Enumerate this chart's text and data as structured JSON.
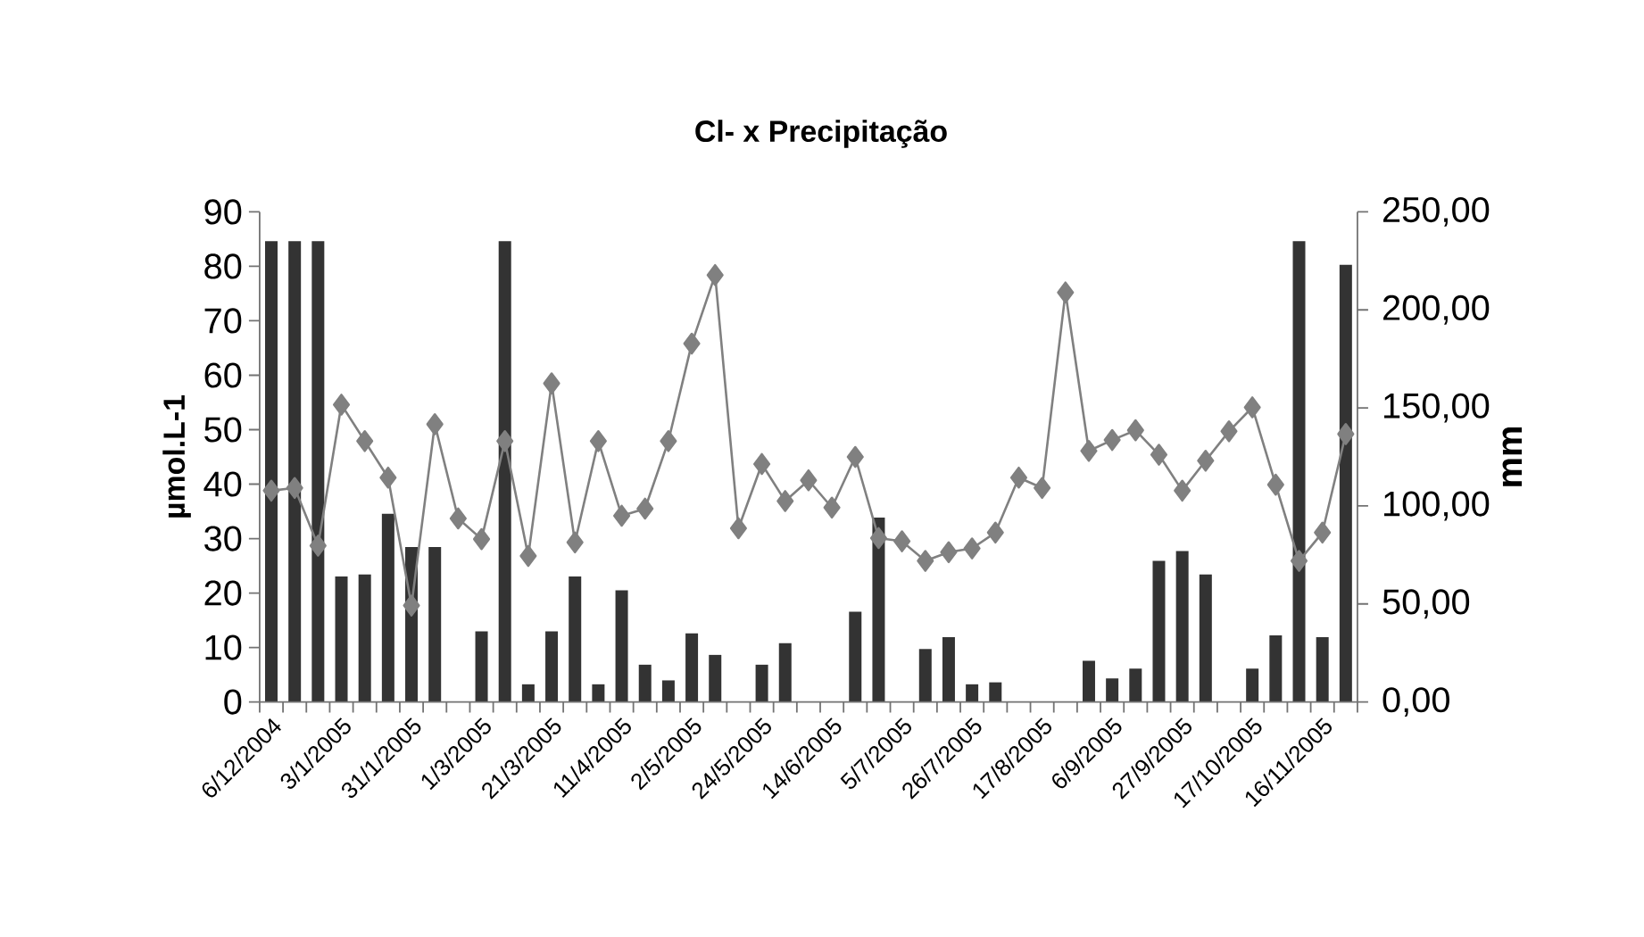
{
  "chart_data": {
    "type": "line",
    "title": "Cl- x Precipitação",
    "ylabel": "µmol.L-1",
    "y2label": "mm",
    "categories": [
      "6/12/2004",
      null,
      null,
      "3/1/2005",
      null,
      null,
      "31/1/2005",
      null,
      null,
      "1/3/2005",
      null,
      null,
      "21/3/2005",
      null,
      null,
      "11/4/2005",
      null,
      null,
      "2/5/2005",
      null,
      null,
      "24/5/2005",
      null,
      null,
      "14/6/2005",
      null,
      null,
      "5/7/2005",
      null,
      null,
      "26/7/2005",
      null,
      null,
      "17/8/2005",
      null,
      null,
      "6/9/2005",
      null,
      null,
      "27/9/2005",
      null,
      null,
      "17/10/2005",
      null,
      null,
      "16/11/2005",
      null
    ],
    "series": [
      {
        "type": "bar",
        "axis": "y2",
        "color": "#333333",
        "values": [
          235,
          235,
          235,
          64,
          65,
          96,
          79,
          79,
          null,
          36,
          235,
          9,
          36,
          64,
          9,
          57,
          19,
          11,
          35,
          24,
          null,
          19,
          30,
          null,
          null,
          46,
          94,
          null,
          27,
          33,
          9,
          10,
          null,
          null,
          null,
          21,
          12,
          17,
          72,
          77,
          65,
          null,
          17,
          34,
          235,
          33,
          223
        ]
      },
      {
        "color": "#808080",
        "marker": "diamond",
        "line_style": "solid",
        "values": [
          38.8,
          39.3,
          28.7,
          54.6,
          47.9,
          41.2,
          17.7,
          51.0,
          33.7,
          29.9,
          47.9,
          26.8,
          58.5,
          29.3,
          47.9,
          34.2,
          35.5,
          47.9,
          65.8,
          78.4,
          31.9,
          43.7,
          36.9,
          40.7,
          35.7,
          45.0,
          30.1,
          29.5,
          25.9,
          27.5,
          28.2,
          31.1,
          41.2,
          39.3,
          75.2,
          46.1,
          48.1,
          49.9,
          45.4,
          38.8,
          44.3,
          49.7,
          54.1,
          39.9,
          25.9,
          31.1,
          49.2
        ]
      }
    ],
    "ylim": [
      0,
      90
    ],
    "yticks": [
      0,
      10,
      20,
      30,
      40,
      50,
      60,
      70,
      80,
      90
    ],
    "y2lim": [
      0,
      250
    ],
    "y2ticks": [
      {
        "value": 0,
        "label": "0,00"
      },
      {
        "value": 50,
        "label": "50,00"
      },
      {
        "value": 100,
        "label": "100,00"
      },
      {
        "value": 150,
        "label": "150,00"
      },
      {
        "value": 200,
        "label": "200,00"
      },
      {
        "value": 250,
        "label": "250,00"
      }
    ]
  }
}
